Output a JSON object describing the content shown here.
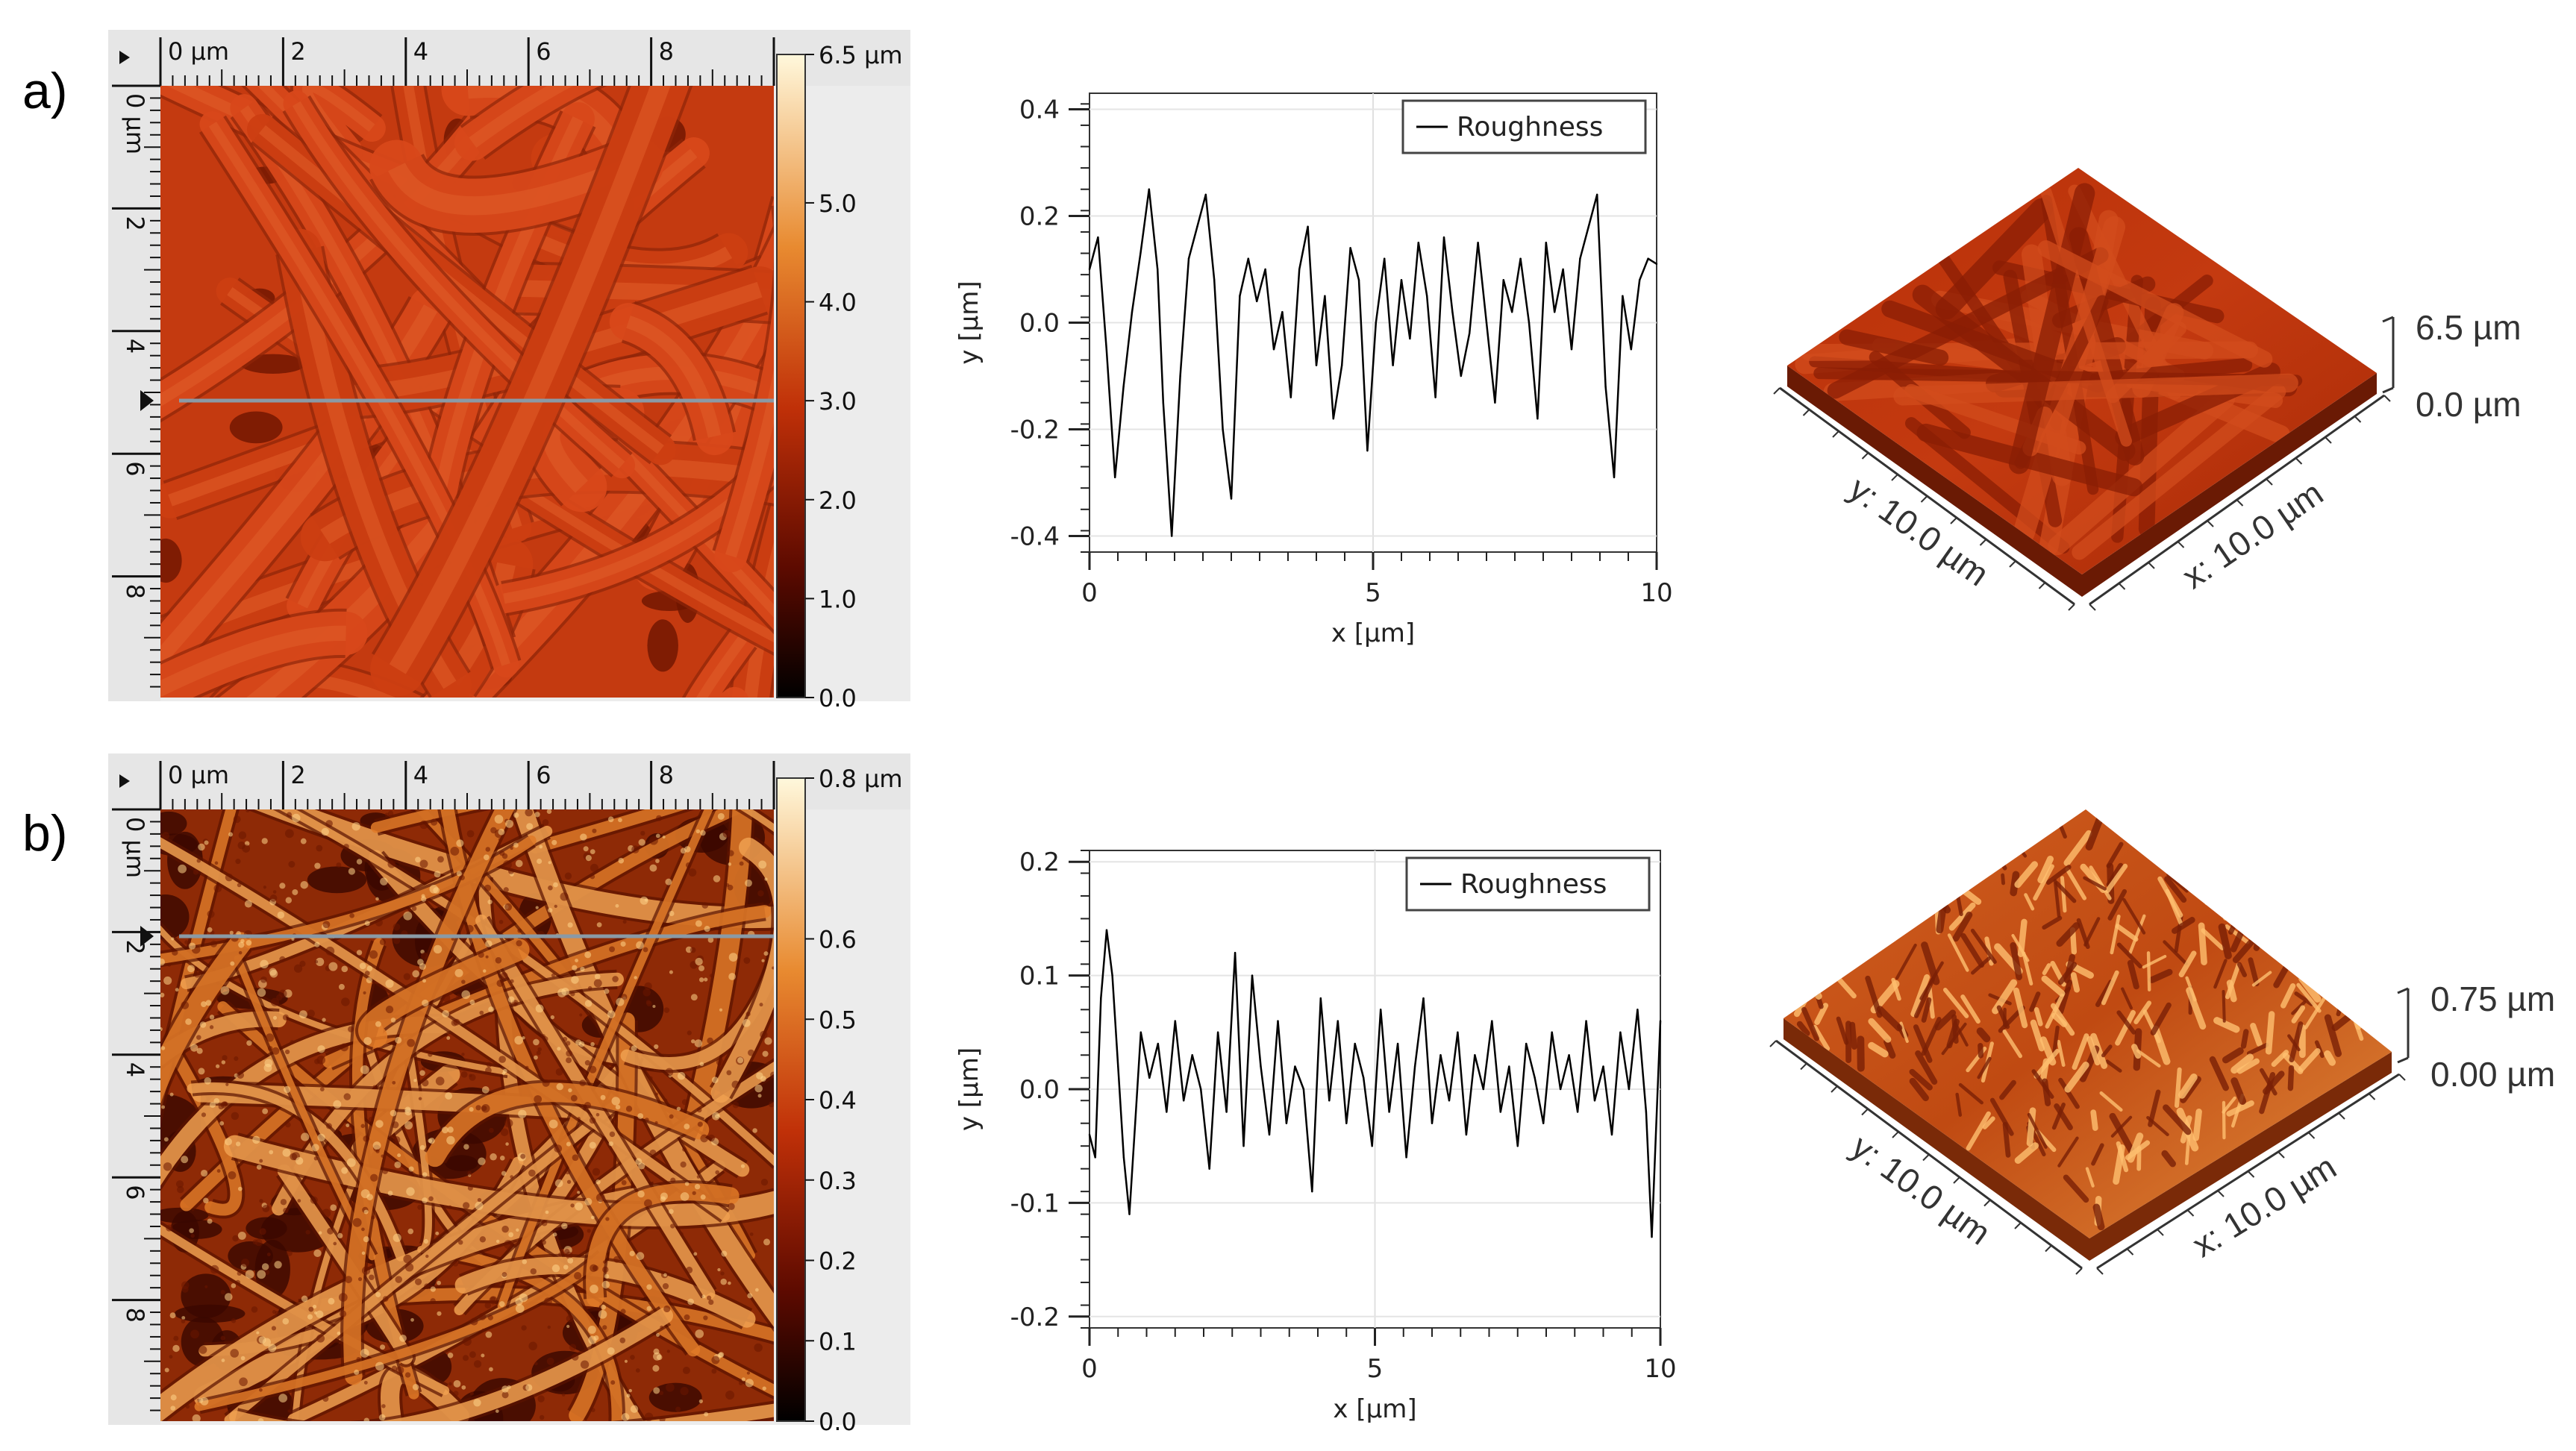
{
  "panels": [
    {
      "letter": "a)",
      "afm_map": {
        "x_ticks": [
          "0 µm",
          "2",
          "4",
          "6",
          "8"
        ],
        "y_ticks": [
          "0 µm",
          "2",
          "4",
          "6",
          "8"
        ],
        "colorbar_ticks": [
          "6.5 µm",
          "5.0",
          "4.0",
          "3.0",
          "2.0",
          "1.0",
          "0.0"
        ],
        "colorbar_values": [
          6.5,
          5.0,
          4.0,
          3.0,
          2.0,
          1.0,
          0.0
        ],
        "colorbar_range": [
          0.0,
          6.5
        ],
        "colors": {
          "dark": "#3a0500",
          "mid": "#c8380a",
          "light": "#ffe6a8",
          "base": "#c43a10"
        }
      },
      "profile": {
        "x_ticks": [
          "0",
          "5",
          "10"
        ],
        "y_ticks": [
          "0.4",
          "0.2",
          "0.0",
          "-0.2",
          "-0.4"
        ]
      },
      "surface3d": {
        "z_top": "6.5 µm",
        "z_bottom": "0.0 µm",
        "y_label": "y: 10.0 µm",
        "x_label": "x: 10.0 µm"
      }
    },
    {
      "letter": "b)",
      "afm_map": {
        "x_ticks": [
          "0 µm",
          "2",
          "4",
          "6",
          "8"
        ],
        "y_ticks": [
          "0 µm",
          "2",
          "4",
          "6",
          "8"
        ],
        "colorbar_ticks": [
          "0.8 µm",
          "0.6",
          "0.5",
          "0.4",
          "0.3",
          "0.2",
          "0.1",
          "0.0"
        ],
        "colorbar_values": [
          0.8,
          0.6,
          0.5,
          0.4,
          0.3,
          0.2,
          0.1,
          0.0
        ],
        "colorbar_range": [
          0.0,
          0.8
        ],
        "colors": {
          "dark": "#3a0500",
          "mid": "#c8380a",
          "light": "#ffe6a8",
          "base": "#b8420e"
        }
      },
      "profile": {
        "x_ticks": [
          "0",
          "5",
          "10"
        ],
        "y_ticks": [
          "0.2",
          "0.1",
          "0.0",
          "-0.1",
          "-0.2"
        ]
      },
      "surface3d": {
        "z_top": "0.75 µm",
        "z_bottom": "0.00 µm",
        "y_label": "y: 10.0 µm",
        "x_label": "x: 10.0 µm"
      }
    }
  ],
  "chart_data": [
    {
      "type": "line",
      "title": "",
      "xlabel": "x [µm]",
      "ylabel": "y [µm]",
      "xlim": [
        0,
        10
      ],
      "ylim": [
        -0.43,
        0.43
      ],
      "legend": "top-right",
      "grid": true,
      "series": [
        {
          "name": "Roughness",
          "color": "#000000",
          "x": [
            0,
            0.15,
            0.3,
            0.45,
            0.6,
            0.75,
            0.9,
            1.05,
            1.2,
            1.3,
            1.45,
            1.6,
            1.75,
            1.9,
            2.05,
            2.2,
            2.35,
            2.5,
            2.65,
            2.8,
            2.95,
            3.1,
            3.25,
            3.4,
            3.55,
            3.7,
            3.85,
            4.0,
            4.15,
            4.3,
            4.45,
            4.6,
            4.75,
            4.9,
            5.05,
            5.2,
            5.35,
            5.5,
            5.65,
            5.8,
            5.95,
            6.1,
            6.25,
            6.4,
            6.55,
            6.7,
            6.85,
            7.0,
            7.15,
            7.3,
            7.45,
            7.6,
            7.75,
            7.9,
            8.05,
            8.2,
            8.35,
            8.5,
            8.65,
            8.8,
            8.95,
            9.1,
            9.25,
            9.4,
            9.55,
            9.7,
            9.85,
            10.0
          ],
          "y": [
            0.1,
            0.16,
            -0.05,
            -0.29,
            -0.12,
            0.02,
            0.13,
            0.25,
            0.1,
            -0.15,
            -0.4,
            -0.1,
            0.12,
            0.18,
            0.24,
            0.08,
            -0.2,
            -0.33,
            0.05,
            0.12,
            0.04,
            0.1,
            -0.05,
            0.02,
            -0.14,
            0.1,
            0.18,
            -0.08,
            0.05,
            -0.18,
            -0.08,
            0.14,
            0.08,
            -0.24,
            0.0,
            0.12,
            -0.08,
            0.08,
            -0.03,
            0.15,
            0.05,
            -0.14,
            0.16,
            0.02,
            -0.1,
            -0.02,
            0.15,
            0.0,
            -0.15,
            0.08,
            0.02,
            0.12,
            0.0,
            -0.18,
            0.15,
            0.02,
            0.1,
            -0.05,
            0.12,
            0.18,
            0.24,
            -0.12,
            -0.29,
            0.05,
            -0.05,
            0.08,
            0.12,
            0.11
          ]
        }
      ]
    },
    {
      "type": "line",
      "title": "",
      "xlabel": "x [µm]",
      "ylabel": "y [µm]",
      "xlim": [
        0,
        10
      ],
      "ylim": [
        -0.21,
        0.21
      ],
      "legend": "top-right",
      "grid": true,
      "series": [
        {
          "name": "Roughness",
          "color": "#000000",
          "x": [
            0,
            0.1,
            0.2,
            0.3,
            0.4,
            0.5,
            0.6,
            0.7,
            0.8,
            0.9,
            1.05,
            1.2,
            1.35,
            1.5,
            1.65,
            1.8,
            1.95,
            2.1,
            2.25,
            2.4,
            2.55,
            2.7,
            2.85,
            3.0,
            3.15,
            3.3,
            3.45,
            3.6,
            3.75,
            3.9,
            4.05,
            4.2,
            4.35,
            4.5,
            4.65,
            4.8,
            4.95,
            5.1,
            5.25,
            5.4,
            5.55,
            5.7,
            5.85,
            6.0,
            6.15,
            6.3,
            6.45,
            6.6,
            6.75,
            6.9,
            7.05,
            7.2,
            7.35,
            7.5,
            7.65,
            7.8,
            7.95,
            8.1,
            8.25,
            8.4,
            8.55,
            8.7,
            8.85,
            9.0,
            9.15,
            9.3,
            9.45,
            9.6,
            9.75,
            9.85,
            10.0
          ],
          "y": [
            -0.04,
            -0.06,
            0.08,
            0.14,
            0.1,
            0.02,
            -0.06,
            -0.11,
            -0.03,
            0.05,
            0.01,
            0.04,
            -0.02,
            0.06,
            -0.01,
            0.03,
            0.0,
            -0.07,
            0.05,
            -0.02,
            0.12,
            -0.05,
            0.1,
            0.02,
            -0.04,
            0.06,
            -0.03,
            0.02,
            0.0,
            -0.09,
            0.08,
            -0.01,
            0.06,
            -0.03,
            0.04,
            0.01,
            -0.05,
            0.07,
            -0.02,
            0.04,
            -0.06,
            0.02,
            0.08,
            -0.03,
            0.03,
            -0.01,
            0.05,
            -0.04,
            0.03,
            0.0,
            0.06,
            -0.02,
            0.02,
            -0.05,
            0.04,
            0.01,
            -0.03,
            0.05,
            0.0,
            0.03,
            -0.02,
            0.06,
            -0.01,
            0.02,
            -0.04,
            0.05,
            0.0,
            0.07,
            -0.02,
            -0.13,
            0.06
          ]
        }
      ]
    }
  ]
}
